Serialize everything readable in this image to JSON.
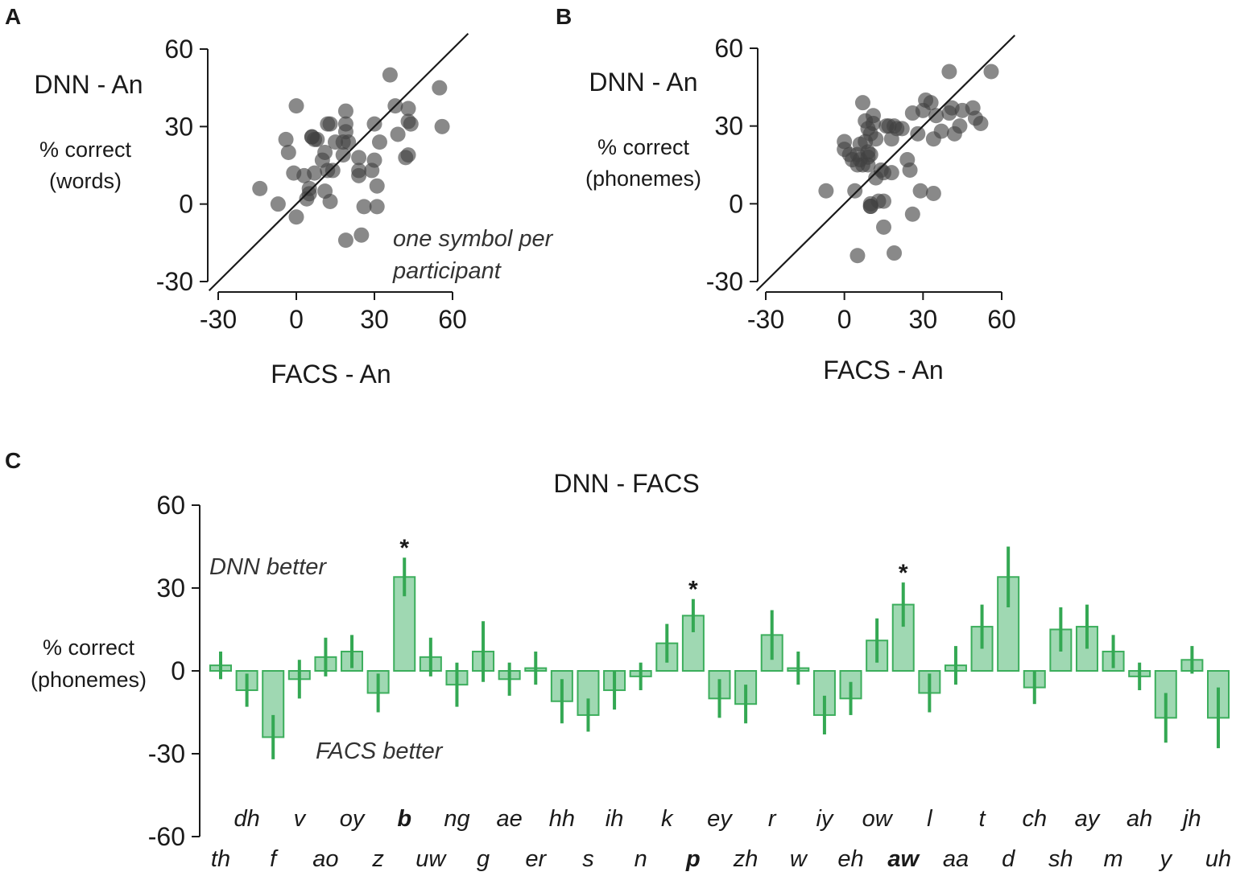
{
  "colors": {
    "dot": "#404040",
    "bar_fill": "#9fd8b2",
    "bar_stroke": "#3cae5c",
    "error": "#34a853",
    "axis": "#1a1a1a"
  },
  "chart_data": [
    {
      "panel": "A",
      "type": "scatter",
      "xlabel": "FACS - An",
      "ylabel_main": "DNN - An",
      "ylabel_sub_1": "% correct",
      "ylabel_sub_2": "(words)",
      "annotation_1": "one symbol per",
      "annotation_2": "participant",
      "xlim": [
        -30,
        60
      ],
      "ylim": [
        -30,
        60
      ],
      "xticks": [
        "-30",
        "0",
        "30",
        "60"
      ],
      "yticks": [
        "-30",
        "0",
        "30",
        "60"
      ],
      "identity_line": true,
      "points": [
        [
          -14,
          6
        ],
        [
          -7,
          0
        ],
        [
          -4,
          25
        ],
        [
          -3,
          20
        ],
        [
          0,
          38
        ],
        [
          0,
          -5
        ],
        [
          -1,
          12
        ],
        [
          3,
          11
        ],
        [
          4,
          2
        ],
        [
          5,
          6
        ],
        [
          5,
          4
        ],
        [
          6,
          26
        ],
        [
          7,
          25
        ],
        [
          6,
          26
        ],
        [
          7,
          12
        ],
        [
          8,
          25
        ],
        [
          10,
          17
        ],
        [
          11,
          20
        ],
        [
          11,
          5
        ],
        [
          12,
          31
        ],
        [
          13,
          31
        ],
        [
          12,
          13
        ],
        [
          13,
          1
        ],
        [
          14,
          13
        ],
        [
          15,
          24
        ],
        [
          18,
          24
        ],
        [
          18,
          19
        ],
        [
          19,
          36
        ],
        [
          19,
          31
        ],
        [
          19,
          28
        ],
        [
          19,
          -14
        ],
        [
          20,
          24
        ],
        [
          24,
          18
        ],
        [
          24,
          13
        ],
        [
          24,
          11
        ],
        [
          25,
          -12
        ],
        [
          26,
          -1
        ],
        [
          29,
          13
        ],
        [
          30,
          17
        ],
        [
          31,
          7
        ],
        [
          30,
          31
        ],
        [
          31,
          -1
        ],
        [
          32,
          24
        ],
        [
          36,
          50
        ],
        [
          38,
          38
        ],
        [
          39,
          27
        ],
        [
          42,
          18
        ],
        [
          43,
          19
        ],
        [
          43,
          37
        ],
        [
          44,
          31
        ],
        [
          43,
          32
        ],
        [
          55,
          45
        ],
        [
          56,
          30
        ]
      ]
    },
    {
      "panel": "B",
      "type": "scatter",
      "xlabel": "FACS - An",
      "ylabel_main": "DNN - An",
      "ylabel_sub_1": "% correct",
      "ylabel_sub_2": "(phonemes)",
      "xlim": [
        -30,
        60
      ],
      "ylim": [
        -30,
        60
      ],
      "xticks": [
        "-30",
        "0",
        "30",
        "60"
      ],
      "yticks": [
        "-30",
        "0",
        "30",
        "60"
      ],
      "identity_line": true,
      "points": [
        [
          -7,
          5
        ],
        [
          0,
          24
        ],
        [
          0,
          21
        ],
        [
          2,
          19
        ],
        [
          3,
          17
        ],
        [
          4,
          5
        ],
        [
          5,
          19
        ],
        [
          5,
          15
        ],
        [
          5,
          -20
        ],
        [
          6,
          23
        ],
        [
          6,
          17
        ],
        [
          7,
          15
        ],
        [
          7,
          39
        ],
        [
          8,
          32
        ],
        [
          8,
          24
        ],
        [
          9,
          20
        ],
        [
          9,
          18
        ],
        [
          9,
          15
        ],
        [
          9,
          29
        ],
        [
          10,
          27
        ],
        [
          10,
          19
        ],
        [
          10,
          0
        ],
        [
          10,
          -1
        ],
        [
          10,
          -1
        ],
        [
          11,
          34
        ],
        [
          11,
          31
        ],
        [
          12,
          25
        ],
        [
          12,
          10
        ],
        [
          13,
          1
        ],
        [
          14,
          13
        ],
        [
          15,
          1
        ],
        [
          15,
          12
        ],
        [
          15,
          -9
        ],
        [
          16,
          30
        ],
        [
          17,
          30
        ],
        [
          18,
          12
        ],
        [
          18,
          25
        ],
        [
          19,
          30
        ],
        [
          19,
          -19
        ],
        [
          20,
          29
        ],
        [
          22,
          29
        ],
        [
          24,
          17
        ],
        [
          25,
          13
        ],
        [
          26,
          35
        ],
        [
          26,
          -4
        ],
        [
          28,
          27
        ],
        [
          29,
          5
        ],
        [
          30,
          36
        ],
        [
          31,
          40
        ],
        [
          33,
          39
        ],
        [
          34,
          25
        ],
        [
          34,
          4
        ],
        [
          35,
          34
        ],
        [
          37,
          28
        ],
        [
          40,
          51
        ],
        [
          40,
          35
        ],
        [
          41,
          37
        ],
        [
          42,
          27
        ],
        [
          44,
          30
        ],
        [
          45,
          36
        ],
        [
          49,
          37
        ],
        [
          50,
          33
        ],
        [
          52,
          31
        ],
        [
          56,
          51
        ]
      ]
    },
    {
      "panel": "C",
      "type": "bar",
      "title": "DNN - FACS",
      "ylabel_1": "% correct",
      "ylabel_2": "(phonemes)",
      "ylim": [
        -60,
        60
      ],
      "yticks": [
        "-60",
        "-30",
        "0",
        "30",
        "60"
      ],
      "annotation_top": "DNN better",
      "annotation_bottom": "FACS better",
      "bars": [
        {
          "label": "th",
          "value": 2,
          "err": 5,
          "row": "lower",
          "bold": false,
          "sig": false
        },
        {
          "label": "dh",
          "value": -7,
          "err": 6,
          "row": "upper",
          "bold": false,
          "sig": false
        },
        {
          "label": "f",
          "value": -24,
          "err": 8,
          "row": "lower",
          "bold": false,
          "sig": false
        },
        {
          "label": "v",
          "value": -3,
          "err": 7,
          "row": "upper",
          "bold": false,
          "sig": false
        },
        {
          "label": "ao",
          "value": 5,
          "err": 7,
          "row": "lower",
          "bold": false,
          "sig": false
        },
        {
          "label": "oy",
          "value": 7,
          "err": 6,
          "row": "upper",
          "bold": false,
          "sig": false
        },
        {
          "label": "z",
          "value": -8,
          "err": 7,
          "row": "lower",
          "bold": false,
          "sig": false
        },
        {
          "label": "b",
          "value": 34,
          "err": 7,
          "row": "upper",
          "bold": true,
          "sig": true
        },
        {
          "label": "uw",
          "value": 5,
          "err": 7,
          "row": "lower",
          "bold": false,
          "sig": false
        },
        {
          "label": "ng",
          "value": -5,
          "err": 8,
          "row": "upper",
          "bold": false,
          "sig": false
        },
        {
          "label": "g",
          "value": 7,
          "err": 11,
          "row": "lower",
          "bold": false,
          "sig": false
        },
        {
          "label": "ae",
          "value": -3,
          "err": 6,
          "row": "upper",
          "bold": false,
          "sig": false
        },
        {
          "label": "er",
          "value": 1,
          "err": 6,
          "row": "lower",
          "bold": false,
          "sig": false
        },
        {
          "label": "hh",
          "value": -11,
          "err": 8,
          "row": "upper",
          "bold": false,
          "sig": false
        },
        {
          "label": "s",
          "value": -16,
          "err": 6,
          "row": "lower",
          "bold": false,
          "sig": false
        },
        {
          "label": "ih",
          "value": -7,
          "err": 7,
          "row": "upper",
          "bold": false,
          "sig": false
        },
        {
          "label": "n",
          "value": -2,
          "err": 5,
          "row": "lower",
          "bold": false,
          "sig": false
        },
        {
          "label": "k",
          "value": 10,
          "err": 7,
          "row": "upper",
          "bold": false,
          "sig": false
        },
        {
          "label": "p",
          "value": 20,
          "err": 6,
          "row": "lower",
          "bold": true,
          "sig": true
        },
        {
          "label": "ey",
          "value": -10,
          "err": 7,
          "row": "upper",
          "bold": false,
          "sig": false
        },
        {
          "label": "zh",
          "value": -12,
          "err": 7,
          "row": "lower",
          "bold": false,
          "sig": false
        },
        {
          "label": "r",
          "value": 13,
          "err": 9,
          "row": "upper",
          "bold": false,
          "sig": false
        },
        {
          "label": "w",
          "value": 1,
          "err": 6,
          "row": "lower",
          "bold": false,
          "sig": false
        },
        {
          "label": "iy",
          "value": -16,
          "err": 7,
          "row": "upper",
          "bold": false,
          "sig": false
        },
        {
          "label": "eh",
          "value": -10,
          "err": 6,
          "row": "lower",
          "bold": false,
          "sig": false
        },
        {
          "label": "ow",
          "value": 11,
          "err": 8,
          "row": "upper",
          "bold": false,
          "sig": false
        },
        {
          "label": "aw",
          "value": 24,
          "err": 8,
          "row": "lower",
          "bold": true,
          "sig": true
        },
        {
          "label": "l",
          "value": -8,
          "err": 7,
          "row": "upper",
          "bold": false,
          "sig": false
        },
        {
          "label": "aa",
          "value": 2,
          "err": 7,
          "row": "lower",
          "bold": false,
          "sig": false
        },
        {
          "label": "t",
          "value": 16,
          "err": 8,
          "row": "upper",
          "bold": false,
          "sig": false
        },
        {
          "label": "d",
          "value": 34,
          "err": 11,
          "row": "lower",
          "bold": false,
          "sig": false
        },
        {
          "label": "ch",
          "value": -6,
          "err": 6,
          "row": "upper",
          "bold": false,
          "sig": false
        },
        {
          "label": "sh",
          "value": 15,
          "err": 8,
          "row": "lower",
          "bold": false,
          "sig": false
        },
        {
          "label": "ay",
          "value": 16,
          "err": 8,
          "row": "upper",
          "bold": false,
          "sig": false
        },
        {
          "label": "m",
          "value": 7,
          "err": 6,
          "row": "lower",
          "bold": false,
          "sig": false
        },
        {
          "label": "ah",
          "value": -2,
          "err": 5,
          "row": "upper",
          "bold": false,
          "sig": false
        },
        {
          "label": "y",
          "value": -17,
          "err": 9,
          "row": "lower",
          "bold": false,
          "sig": false
        },
        {
          "label": "jh",
          "value": 4,
          "err": 5,
          "row": "upper",
          "bold": false,
          "sig": false
        },
        {
          "label": "uh",
          "value": -17,
          "err": 11,
          "row": "lower",
          "bold": false,
          "sig": false
        }
      ]
    }
  ]
}
